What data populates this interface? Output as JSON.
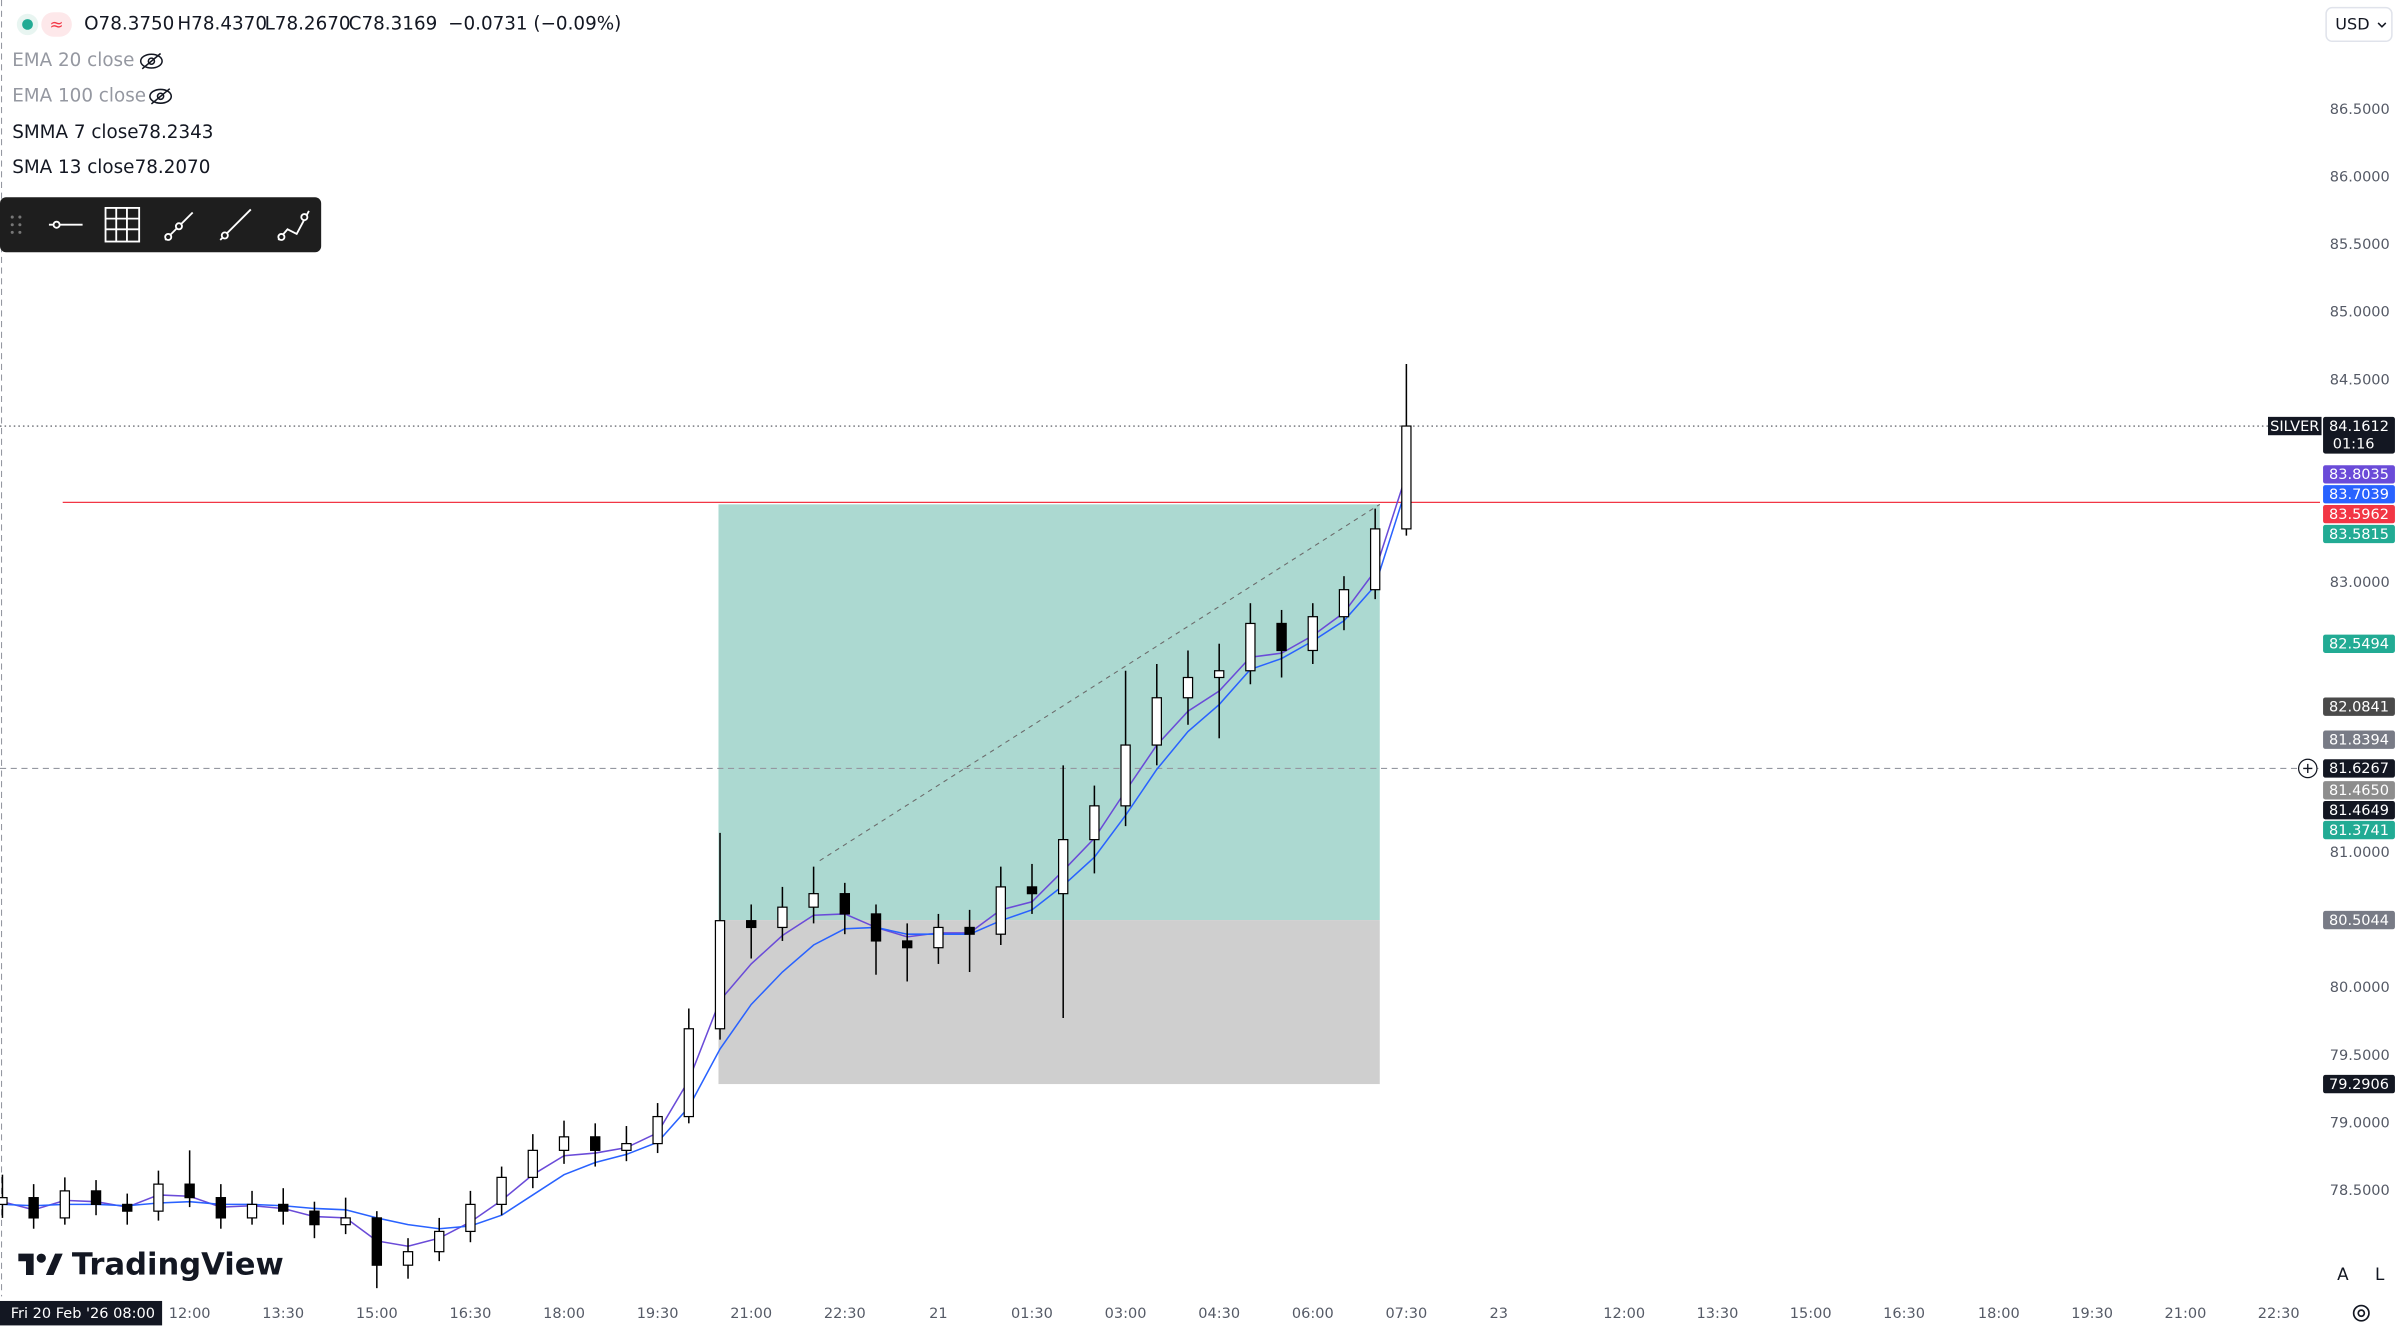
{
  "chart_data": {
    "type": "candlestick",
    "symbol_readout": [
      "O78.3750",
      "H78.4370",
      "L78.2670",
      "C78.3169",
      "−0.0731 (−0.09%)"
    ],
    "hidden_indicators": [
      "EMA 20 close",
      "EMA 100 close"
    ],
    "currency": "USD",
    "logo_text": "TradingView",
    "scale_buttons": [
      "A",
      "L"
    ],
    "x_cursor_label": "Fri 20 Feb '26  08:00",
    "categories": [
      null,
      null,
      null,
      null,
      null,
      null,
      "12:00",
      null,
      null,
      "13:30",
      null,
      null,
      "15:00",
      null,
      null,
      "16:30",
      null,
      null,
      "18:00",
      null,
      null,
      "19:30",
      null,
      null,
      "21:00",
      null,
      null,
      "22:30",
      null,
      null,
      "21",
      null,
      null,
      "01:30",
      null,
      null,
      "03:00",
      null,
      null,
      "04:30",
      null,
      null,
      "06:00",
      null,
      null,
      "07:30"
    ],
    "future_time_labels": [
      "23",
      "12:00",
      "13:30",
      "15:00",
      "16:30",
      "18:00",
      "19:30",
      "21:00",
      "22:30"
    ],
    "open": [
      78.4,
      78.45,
      78.3,
      78.5,
      78.4,
      78.35,
      78.55,
      78.45,
      78.3,
      78.4,
      78.35,
      78.25,
      78.3,
      77.95,
      78.05,
      78.2,
      78.4,
      78.6,
      78.8,
      78.9,
      78.8,
      78.85,
      79.05,
      79.7,
      80.5,
      80.45,
      80.6,
      80.7,
      80.55,
      80.35,
      80.3,
      80.45,
      80.4,
      80.75,
      80.7,
      81.1,
      81.35,
      81.8,
      82.15,
      82.3,
      82.35,
      82.7,
      82.5,
      82.75,
      82.95,
      83.4
    ],
    "high": [
      78.62,
      78.55,
      78.6,
      78.58,
      78.48,
      78.65,
      78.8,
      78.55,
      78.5,
      78.52,
      78.42,
      78.45,
      78.35,
      78.15,
      78.3,
      78.5,
      78.68,
      78.92,
      79.02,
      79.0,
      78.98,
      79.15,
      79.85,
      81.15,
      80.62,
      80.75,
      80.9,
      80.78,
      80.62,
      80.48,
      80.55,
      80.58,
      80.9,
      80.92,
      81.65,
      81.5,
      82.35,
      82.4,
      82.5,
      82.55,
      82.85,
      82.8,
      82.85,
      83.05,
      83.55,
      84.62
    ],
    "low": [
      78.3,
      78.22,
      78.25,
      78.32,
      78.25,
      78.28,
      78.38,
      78.22,
      78.25,
      78.25,
      78.15,
      78.18,
      77.78,
      77.85,
      77.98,
      78.12,
      78.32,
      78.52,
      78.7,
      78.68,
      78.72,
      78.78,
      79.0,
      79.62,
      80.22,
      80.35,
      80.48,
      80.4,
      80.1,
      80.05,
      80.18,
      80.12,
      80.32,
      80.55,
      79.78,
      80.85,
      81.2,
      81.65,
      81.95,
      81.85,
      82.25,
      82.3,
      82.4,
      82.65,
      82.88,
      83.35
    ],
    "close": [
      78.45,
      78.3,
      78.5,
      78.4,
      78.35,
      78.55,
      78.45,
      78.3,
      78.4,
      78.35,
      78.25,
      78.3,
      77.95,
      78.05,
      78.2,
      78.4,
      78.6,
      78.8,
      78.9,
      78.8,
      78.85,
      79.05,
      79.7,
      80.5,
      80.45,
      80.6,
      80.7,
      80.55,
      80.35,
      80.3,
      80.45,
      80.4,
      80.75,
      80.7,
      81.1,
      81.35,
      81.8,
      82.15,
      82.3,
      82.35,
      82.7,
      82.5,
      82.75,
      82.95,
      83.4,
      84.1612
    ],
    "up_color": "#ffffff",
    "down_color": "#000000",
    "wick_color": "#000000",
    "series": [
      {
        "name": "SMMA 7 close",
        "legend_value": "78.2343",
        "color": "#6a4bd8",
        "last_label": "83.8035",
        "values": [
          78.42,
          78.36,
          78.43,
          78.42,
          78.38,
          78.47,
          78.46,
          78.38,
          78.39,
          78.37,
          78.31,
          78.3,
          78.13,
          78.09,
          78.15,
          78.27,
          78.43,
          78.62,
          78.76,
          78.78,
          78.82,
          78.93,
          79.32,
          79.91,
          80.18,
          80.39,
          80.54,
          80.55,
          80.45,
          80.38,
          80.41,
          80.41,
          80.58,
          80.64,
          80.87,
          81.11,
          81.46,
          81.8,
          82.05,
          82.2,
          82.45,
          82.48,
          82.61,
          82.78,
          83.09,
          83.8035
        ]
      },
      {
        "name": "SMA 13 close",
        "legend_value": "78.2070",
        "color": "#2962ff",
        "last_label": "83.7039",
        "values": [
          78.4,
          78.39,
          78.4,
          78.4,
          78.39,
          78.41,
          78.42,
          78.4,
          78.4,
          78.39,
          78.37,
          78.36,
          78.3,
          78.25,
          78.22,
          78.24,
          78.32,
          78.47,
          78.62,
          78.71,
          78.77,
          78.86,
          79.12,
          79.55,
          79.88,
          80.12,
          80.32,
          80.44,
          80.45,
          80.4,
          80.4,
          80.4,
          80.5,
          80.58,
          80.76,
          80.97,
          81.28,
          81.62,
          81.9,
          82.1,
          82.36,
          82.44,
          82.57,
          82.72,
          82.98,
          83.7039
        ]
      }
    ],
    "last_price": {
      "value": 84.1612,
      "label": "84.1612",
      "countdown": "01:16",
      "symbol": "SILVER"
    },
    "alert_line": {
      "value": 83.5962,
      "label": "83.5962",
      "color": "#f23645"
    },
    "position": {
      "target": {
        "value": 83.5815,
        "label": "83.5815",
        "color": "#22ab94"
      },
      "entry": {
        "value": 80.5044,
        "label": "80.5044",
        "color": "#787b86"
      },
      "stop": {
        "value": 79.2906,
        "label": "79.2906",
        "color": "#131722"
      },
      "profit_fill": "#acd9d1",
      "loss_fill": "#cfcfcf"
    },
    "crosshair": {
      "value": 81.6267,
      "label": "81.6267"
    },
    "other_markers": [
      {
        "value": 82.5494,
        "label": "82.5494",
        "color": "#22ab94"
      },
      {
        "value": 82.0841,
        "label": "82.0841",
        "color": "#4a4a4a"
      },
      {
        "value": 81.8394,
        "label": "81.8394",
        "color": "#787b86"
      },
      {
        "value": 81.465,
        "label": "81.4650",
        "color": "#8d8d8d"
      },
      {
        "value": 81.4649,
        "label": "81.4649",
        "color": "#131722"
      },
      {
        "value": 81.3741,
        "label": "81.3741",
        "color": "#22ab94"
      }
    ],
    "ylim": [
      77.7532,
      87.3147
    ],
    "yticks": [
      {
        "value": 86.5,
        "label": "86.5000"
      },
      {
        "value": 86.0,
        "label": "86.0000"
      },
      {
        "value": 85.5,
        "label": "85.5000"
      },
      {
        "value": 85.0,
        "label": "85.0000"
      },
      {
        "value": 84.5,
        "label": "84.5000"
      },
      {
        "value": 83.0,
        "label": "83.0000"
      },
      {
        "value": 81.0,
        "label": "81.0000"
      },
      {
        "value": 80.0,
        "label": "80.0000"
      },
      {
        "value": 79.5,
        "label": "79.5000"
      },
      {
        "value": 79.0,
        "label": "79.0000"
      },
      {
        "value": 78.5,
        "label": "78.5000"
      }
    ],
    "grid": false
  }
}
